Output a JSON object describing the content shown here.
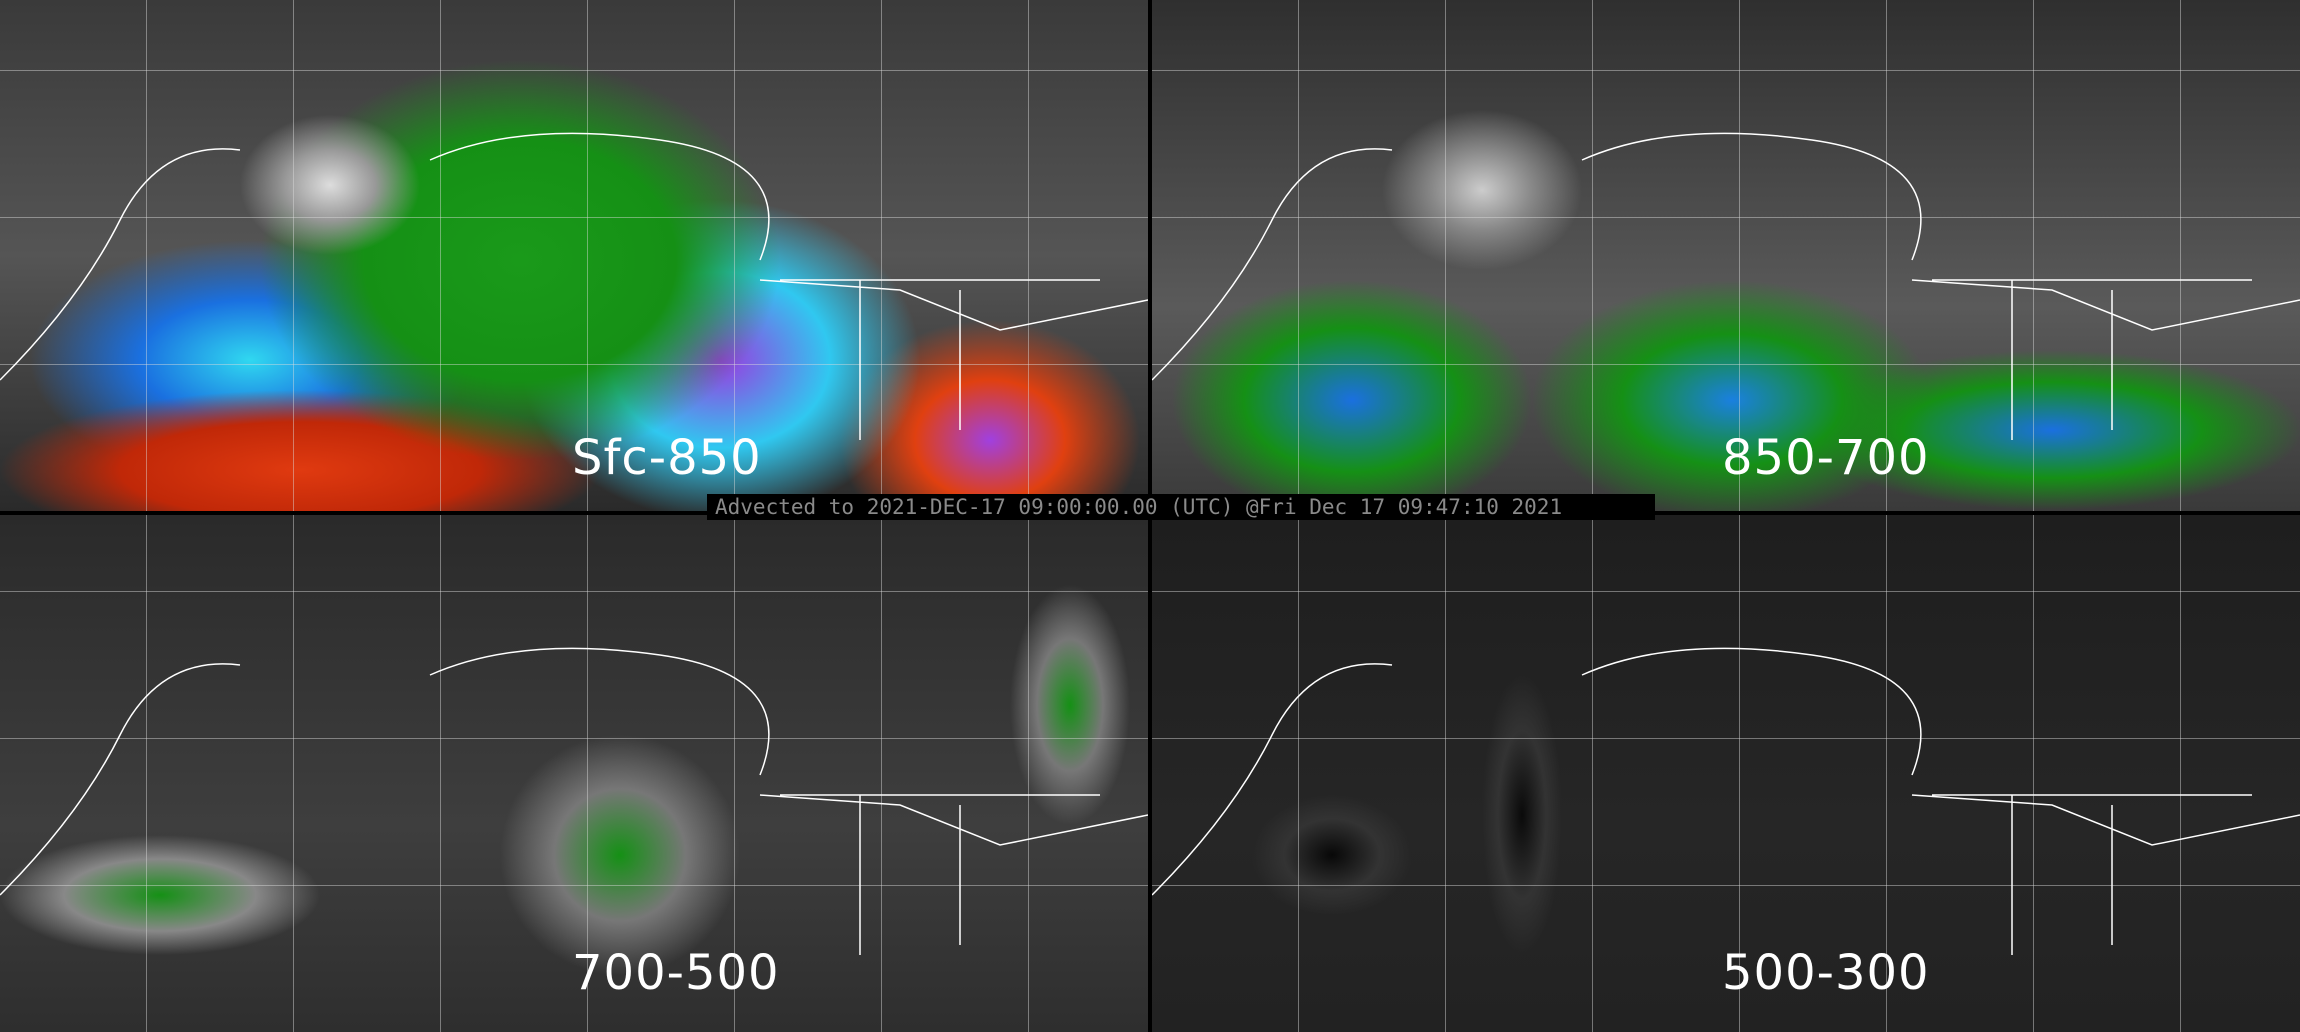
{
  "panels": [
    {
      "label": "Sfc-850"
    },
    {
      "label": "850-700"
    },
    {
      "label": "700-500"
    },
    {
      "label": "500-300"
    }
  ],
  "caption": "Advected to 2021-DEC-17 09:00:00.00 (UTC) @Fri Dec 17 09:47:10 2021",
  "colors": {
    "background": "#000000",
    "moisture_low": "#159015",
    "moisture_mid": "#1a70e0",
    "moisture_high": "#9a3ae0",
    "moisture_max": "#e03a10",
    "caption_text": "#8a8a8a"
  }
}
